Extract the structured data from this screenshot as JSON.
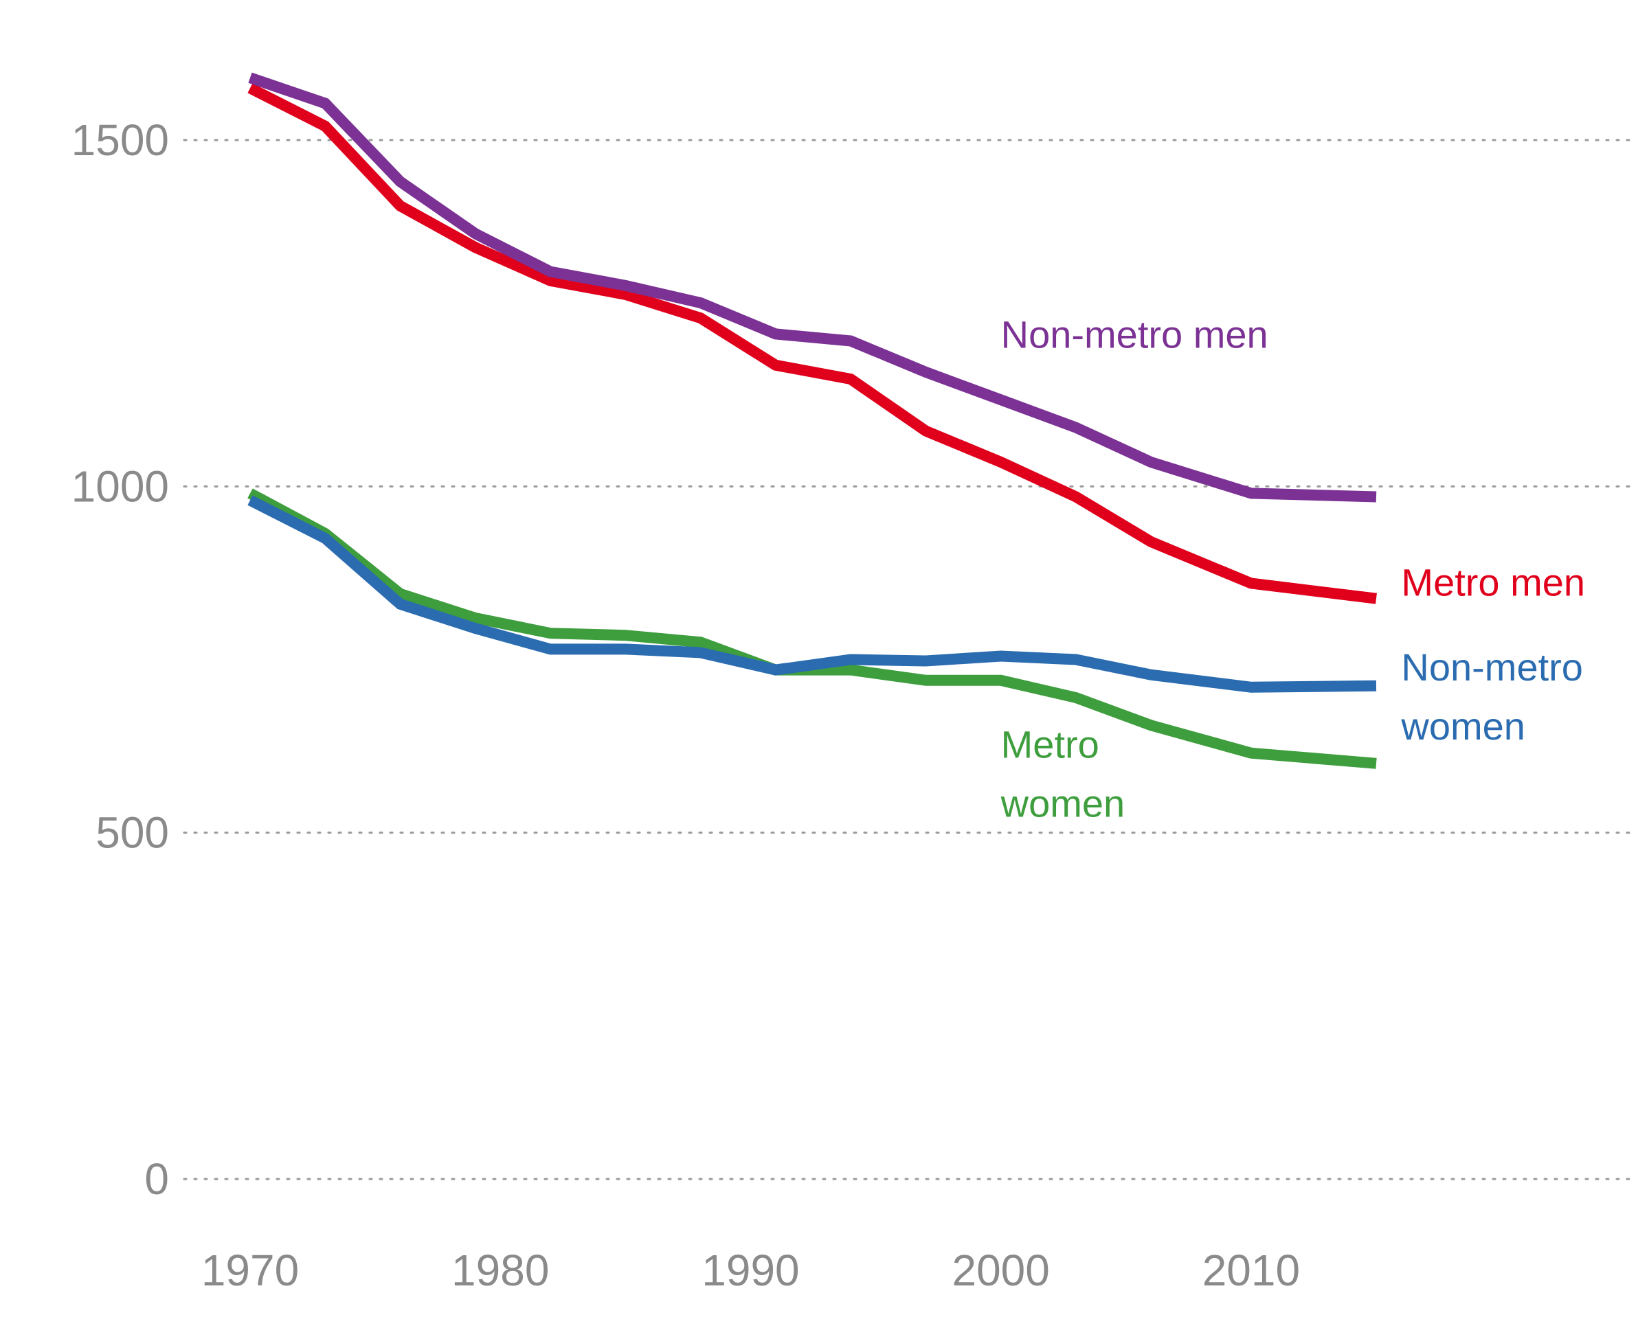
{
  "chart_data": {
    "type": "line",
    "title": "",
    "xlabel": "",
    "ylabel": "",
    "xlim": [
      1970,
      2015
    ],
    "ylim": [
      0,
      1600
    ],
    "y_ticks": [
      0,
      500,
      1000,
      1500
    ],
    "x_ticks": [
      1970,
      1980,
      1990,
      2000,
      2010
    ],
    "grid": "horizontal dotted",
    "legend": "inline labels",
    "x": [
      1970,
      1973,
      1976,
      1979,
      1982,
      1985,
      1988,
      1991,
      1994,
      1997,
      2000,
      2003,
      2006,
      2010,
      2015
    ],
    "series": [
      {
        "id": "nonmetro-men",
        "label_lines": [
          "Non-metro men"
        ],
        "label_year": 2000,
        "label_value": 1200,
        "color": "#7b3294",
        "values": [
          1590,
          1553,
          1440,
          1365,
          1310,
          1290,
          1265,
          1220,
          1210,
          1165,
          1125,
          1085,
          1035,
          990,
          985
        ]
      },
      {
        "id": "metro-men",
        "label_lines": [
          "Metro men"
        ],
        "label_year": 2016,
        "label_value": 842,
        "color": "#e0001b",
        "values": [
          1575,
          1520,
          1405,
          1345,
          1297,
          1277,
          1243,
          1175,
          1155,
          1080,
          1035,
          985,
          920,
          860,
          838
        ]
      },
      {
        "id": "nonmetro-women",
        "label_lines": [
          "Non-metro",
          "women"
        ],
        "label_year": 2016,
        "label_value": 720,
        "color": "#2b6cb0",
        "values": [
          980,
          925,
          830,
          795,
          765,
          765,
          760,
          735,
          750,
          748,
          755,
          750,
          728,
          710,
          712
        ]
      },
      {
        "id": "metro-women",
        "label_lines": [
          "Metro",
          "women"
        ],
        "label_year": 2000,
        "label_value": 608,
        "color": "#3e9e3e",
        "values": [
          990,
          932,
          845,
          810,
          788,
          785,
          775,
          735,
          735,
          720,
          720,
          695,
          655,
          615,
          600
        ]
      }
    ]
  }
}
